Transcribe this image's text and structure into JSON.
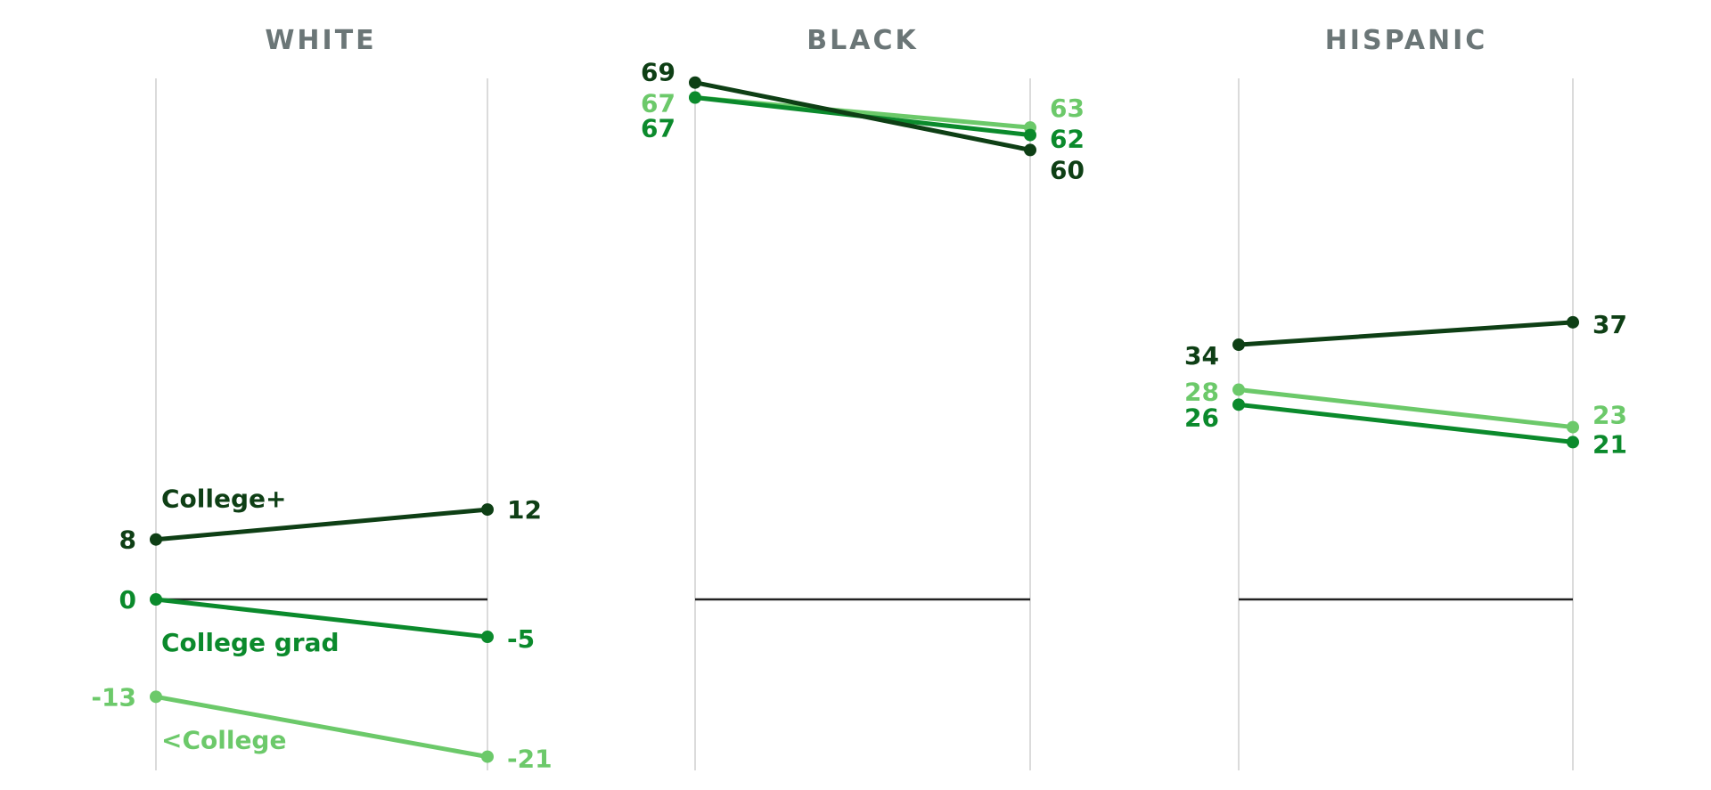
{
  "chart_data": {
    "type": "line",
    "ylim": [
      -21,
      69
    ],
    "series_colors": {
      "College+": "#0e3f15",
      "College grad": "#0b8a2c",
      "<College": "#6cc96a"
    },
    "zero_line_color": "#222222",
    "axis_line_color": "#cfcfcf",
    "panel_title_color": "#6b7677",
    "panels": [
      {
        "title": "WHITE",
        "show_series_labels": true,
        "series": [
          {
            "name": "College+",
            "values": [
              8,
              12
            ]
          },
          {
            "name": "College grad",
            "values": [
              0,
              -5
            ]
          },
          {
            "name": "<College",
            "values": [
              -13,
              -21
            ]
          }
        ]
      },
      {
        "title": "BLACK",
        "show_series_labels": false,
        "series": [
          {
            "name": "College+",
            "values": [
              69,
              60
            ]
          },
          {
            "name": "College grad",
            "values": [
              67,
              62
            ]
          },
          {
            "name": "<College",
            "values": [
              67,
              63
            ]
          }
        ]
      },
      {
        "title": "HISPANIC",
        "show_series_labels": false,
        "series": [
          {
            "name": "College+",
            "values": [
              34,
              37
            ]
          },
          {
            "name": "College grad",
            "values": [
              26,
              21
            ]
          },
          {
            "name": "<College",
            "values": [
              28,
              23
            ]
          }
        ]
      }
    ]
  }
}
